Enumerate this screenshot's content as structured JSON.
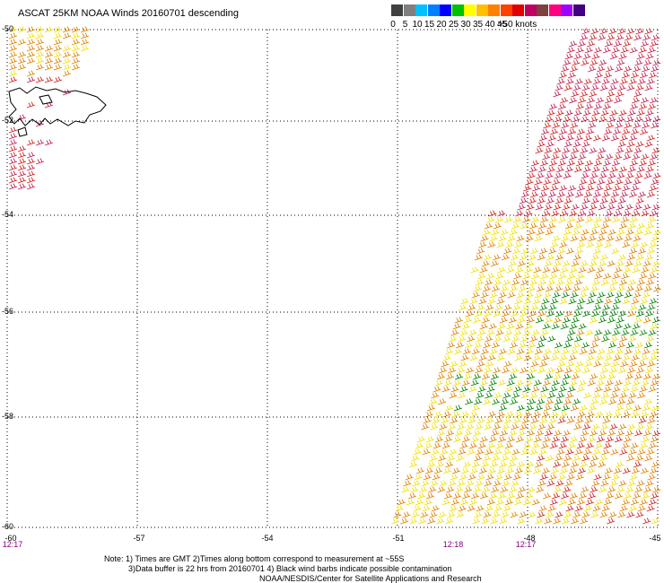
{
  "title": "ASCAT 25KM NOAA Winds 20160701 descending",
  "colorbar": {
    "cells": [
      "#404040",
      "#808080",
      "#00c0ff",
      "#0080ff",
      "#0000ff",
      "#00c000",
      "#ffff00",
      "#ffc000",
      "#ff8000",
      "#ff4000",
      "#e00000",
      "#c00060",
      "#804040",
      "#ff0080",
      "#a000ff",
      "#400080"
    ],
    "labels": [
      {
        "text": "0",
        "i": 0
      },
      {
        "text": "5",
        "i": 2
      },
      {
        "text": "10",
        "i": 4
      },
      {
        "text": "15",
        "i": 6
      },
      {
        "text": "20",
        "i": 8
      },
      {
        "text": "25",
        "i": 10
      },
      {
        "text": "30",
        "i": 12
      },
      {
        "text": "35",
        "i": 14
      },
      {
        "text": "40",
        "i": 16
      },
      {
        "text": "45",
        "i": 18
      },
      {
        "text": ">50 knots",
        "i": 20.5
      }
    ]
  },
  "axes": {
    "lat_labels": [
      "-50",
      "-52",
      "-54",
      "-56",
      "-58",
      "-60"
    ],
    "lon_labels": [
      "-60",
      "-57",
      "-54",
      "-51",
      "-48",
      "-45"
    ],
    "time_labels": [
      "12:17",
      "12:18",
      "12:17"
    ]
  },
  "notes": {
    "line1": "Note: 1) Times are GMT 2)Times along bottom correspond to measurement at ~55S",
    "line2": "3)Data buffer is 22 hrs from 20160701 4) Black wind barbs indicate possible contamination",
    "line3": "NOAA/NESDIS/Center for Satellite Applications and Research"
  },
  "colors": {
    "calm_green": "#008000",
    "yellow": "#f0e000",
    "orange": "#e08000",
    "red": "#d02020",
    "magenta": "#c02050"
  }
}
